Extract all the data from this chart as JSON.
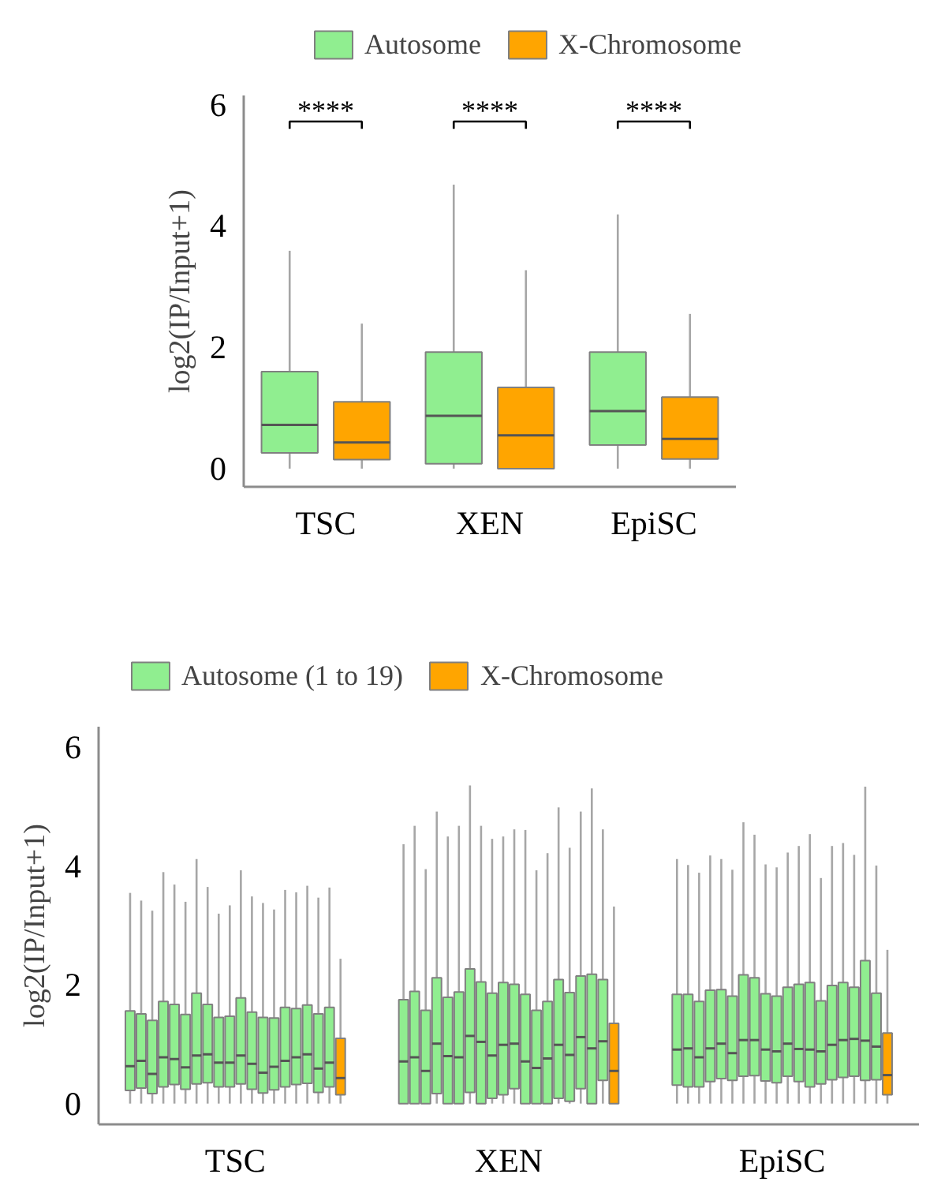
{
  "chart_data": [
    {
      "type": "box",
      "categories": [
        "TSC",
        "XEN",
        "EpiSC"
      ],
      "ylabel": "log2(IP/Input+1)",
      "ylim": [
        -0.3,
        6.15
      ],
      "yticks": [
        0,
        2,
        4,
        6
      ],
      "legend": "top",
      "annotations": [
        "****",
        "****",
        "****"
      ],
      "series": [
        {
          "name": "Autosome",
          "color": "#90ee90",
          "boxes": [
            {
              "low": 0,
              "q1": 0.26,
              "median": 0.72,
              "q3": 1.6,
              "high": 3.59
            },
            {
              "low": 0,
              "q1": 0.08,
              "median": 0.87,
              "q3": 1.92,
              "high": 4.68
            },
            {
              "low": 0,
              "q1": 0.39,
              "median": 0.95,
              "q3": 1.92,
              "high": 4.19
            }
          ]
        },
        {
          "name": "X-Chromosome",
          "color": "#ffa500",
          "boxes": [
            {
              "low": 0,
              "q1": 0.15,
              "median": 0.43,
              "q3": 1.1,
              "high": 2.39
            },
            {
              "low": 0,
              "q1": 0,
              "median": 0.55,
              "q3": 1.34,
              "high": 3.27
            },
            {
              "low": 0,
              "q1": 0.16,
              "median": 0.49,
              "q3": 1.18,
              "high": 2.55
            }
          ]
        }
      ]
    },
    {
      "type": "box",
      "categories": [
        "TSC",
        "XEN",
        "EpiSC"
      ],
      "ylabel": "log2(IP/Input+1)",
      "ylim": [
        -0.35,
        6.35
      ],
      "yticks": [
        0,
        2,
        4,
        6
      ],
      "legend": "top",
      "series": [
        {
          "name": "Autosome (1 to 19)",
          "color": "#90ee90",
          "boxes": [
            {
              "low": 0,
              "q1": 0.22,
              "median": 0.63,
              "q3": 1.56,
              "high": 3.55
            },
            {
              "low": 0,
              "q1": 0,
              "median": 0.71,
              "q3": 1.75,
              "high": 4.37
            },
            {
              "low": 0,
              "q1": 0.31,
              "median": 0.91,
              "q3": 1.84,
              "high": 4.12
            }
          ]
        },
        {
          "color": "#90ee90",
          "boxes": [
            {
              "low": 0,
              "q1": 0.26,
              "median": 0.72,
              "q3": 1.51,
              "high": 3.42
            },
            {
              "low": 0,
              "q1": 0,
              "median": 0.78,
              "q3": 1.89,
              "high": 4.68
            },
            {
              "low": 0,
              "q1": 0.28,
              "median": 0.93,
              "q3": 1.84,
              "high": 4.02
            }
          ]
        },
        {
          "color": "#90ee90",
          "boxes": [
            {
              "low": 0,
              "q1": 0.17,
              "median": 0.5,
              "q3": 1.4,
              "high": 3.25
            },
            {
              "low": 0,
              "q1": 0,
              "median": 0.55,
              "q3": 1.57,
              "high": 3.95
            },
            {
              "low": 0,
              "q1": 0.28,
              "median": 0.78,
              "q3": 1.72,
              "high": 3.89
            }
          ]
        },
        {
          "color": "#90ee90",
          "boxes": [
            {
              "low": 0,
              "q1": 0.28,
              "median": 0.78,
              "q3": 1.72,
              "high": 3.9
            },
            {
              "low": 0,
              "q1": 0.17,
              "median": 1.01,
              "q3": 2.12,
              "high": 4.92
            },
            {
              "low": 0,
              "q1": 0.37,
              "median": 0.93,
              "q3": 1.91,
              "high": 4.18
            }
          ]
        },
        {
          "color": "#90ee90",
          "boxes": [
            {
              "low": 0,
              "q1": 0.32,
              "median": 0.75,
              "q3": 1.67,
              "high": 3.69
            },
            {
              "low": 0,
              "q1": 0,
              "median": 0.8,
              "q3": 1.79,
              "high": 4.5
            },
            {
              "low": 0,
              "q1": 0.42,
              "median": 1.01,
              "q3": 1.92,
              "high": 4.12
            }
          ]
        },
        {
          "color": "#90ee90",
          "boxes": [
            {
              "low": 0,
              "q1": 0.24,
              "median": 0.61,
              "q3": 1.5,
              "high": 3.4
            },
            {
              "low": 0,
              "q1": 0,
              "median": 0.78,
              "q3": 1.88,
              "high": 4.68
            },
            {
              "low": 0,
              "q1": 0.39,
              "median": 0.85,
              "q3": 1.81,
              "high": 3.94
            }
          ]
        },
        {
          "color": "#90ee90",
          "boxes": [
            {
              "low": 0,
              "q1": 0.33,
              "median": 0.81,
              "q3": 1.86,
              "high": 4.12
            },
            {
              "low": 0,
              "q1": 0.19,
              "median": 1.14,
              "q3": 2.27,
              "high": 5.36
            },
            {
              "low": 0,
              "q1": 0.46,
              "median": 1.07,
              "q3": 2.17,
              "high": 4.74
            }
          ]
        },
        {
          "color": "#90ee90",
          "boxes": [
            {
              "low": 0,
              "q1": 0.35,
              "median": 0.83,
              "q3": 1.67,
              "high": 3.65
            },
            {
              "low": 0,
              "q1": 0,
              "median": 1.04,
              "q3": 2.05,
              "high": 4.68
            },
            {
              "low": 0,
              "q1": 0.47,
              "median": 1.07,
              "q3": 2.12,
              "high": 4.53
            }
          ]
        },
        {
          "color": "#90ee90",
          "boxes": [
            {
              "low": 0,
              "q1": 0.28,
              "median": 0.69,
              "q3": 1.45,
              "high": 3.2
            },
            {
              "low": 0,
              "q1": 0.09,
              "median": 0.81,
              "q3": 1.86,
              "high": 4.46
            },
            {
              "low": 0,
              "q1": 0.38,
              "median": 0.91,
              "q3": 1.85,
              "high": 4.03
            }
          ]
        },
        {
          "color": "#90ee90",
          "boxes": [
            {
              "low": 0,
              "q1": 0.28,
              "median": 0.69,
              "q3": 1.47,
              "high": 3.34
            },
            {
              "low": 0,
              "q1": 0.15,
              "median": 0.99,
              "q3": 2.04,
              "high": 4.5
            },
            {
              "low": 0,
              "q1": 0.35,
              "median": 0.88,
              "q3": 1.81,
              "high": 3.98
            }
          ]
        },
        {
          "color": "#90ee90",
          "boxes": [
            {
              "low": 0,
              "q1": 0.33,
              "median": 0.81,
              "q3": 1.78,
              "high": 3.93
            },
            {
              "low": 0,
              "q1": 0.25,
              "median": 1.01,
              "q3": 2.01,
              "high": 4.62
            },
            {
              "low": 0,
              "q1": 0.46,
              "median": 1.01,
              "q3": 1.96,
              "high": 4.23
            }
          ]
        },
        {
          "color": "#90ee90",
          "boxes": [
            {
              "low": 0,
              "q1": 0.24,
              "median": 0.67,
              "q3": 1.54,
              "high": 3.49
            },
            {
              "low": 0,
              "q1": 0,
              "median": 0.71,
              "q3": 1.84,
              "high": 4.61
            },
            {
              "low": 0,
              "q1": 0.37,
              "median": 0.92,
              "q3": 2.01,
              "high": 4.34
            }
          ]
        },
        {
          "color": "#90ee90",
          "boxes": [
            {
              "low": 0,
              "q1": 0.18,
              "median": 0.52,
              "q3": 1.45,
              "high": 3.38
            },
            {
              "low": 0,
              "q1": 0,
              "median": 0.6,
              "q3": 1.57,
              "high": 3.93
            },
            {
              "low": 0,
              "q1": 0.28,
              "median": 0.91,
              "q3": 2.04,
              "high": 4.54
            }
          ]
        },
        {
          "color": "#90ee90",
          "boxes": [
            {
              "low": 0,
              "q1": 0.23,
              "median": 0.62,
              "q3": 1.44,
              "high": 3.27
            },
            {
              "low": 0,
              "q1": 0,
              "median": 0.76,
              "q3": 1.72,
              "high": 4.22
            },
            {
              "low": 0,
              "q1": 0.33,
              "median": 0.88,
              "q3": 1.73,
              "high": 3.8
            }
          ]
        },
        {
          "color": "#90ee90",
          "boxes": [
            {
              "low": 0,
              "q1": 0.28,
              "median": 0.72,
              "q3": 1.62,
              "high": 3.6
            },
            {
              "low": 0,
              "q1": 0.09,
              "median": 0.99,
              "q3": 2.09,
              "high": 4.99
            },
            {
              "low": 0,
              "q1": 0.4,
              "median": 0.99,
              "q3": 1.99,
              "high": 4.34
            }
          ]
        },
        {
          "color": "#90ee90",
          "boxes": [
            {
              "low": 0,
              "q1": 0.32,
              "median": 0.78,
              "q3": 1.6,
              "high": 3.56
            },
            {
              "low": 0,
              "q1": 0.04,
              "median": 0.82,
              "q3": 1.87,
              "high": 4.31
            },
            {
              "low": 0,
              "q1": 0.44,
              "median": 1.07,
              "q3": 2.04,
              "high": 4.39
            }
          ]
        },
        {
          "color": "#90ee90",
          "boxes": [
            {
              "low": 0,
              "q1": 0.34,
              "median": 0.83,
              "q3": 1.66,
              "high": 3.67
            },
            {
              "low": 0,
              "q1": 0.25,
              "median": 1.12,
              "q3": 2.15,
              "high": 4.92
            },
            {
              "low": 0,
              "q1": 0.46,
              "median": 1.09,
              "q3": 1.96,
              "high": 4.19
            }
          ]
        },
        {
          "color": "#90ee90",
          "boxes": [
            {
              "low": 0,
              "q1": 0.19,
              "median": 0.59,
              "q3": 1.51,
              "high": 3.47
            },
            {
              "low": 0,
              "q1": 0,
              "median": 0.93,
              "q3": 2.18,
              "high": 5.31
            },
            {
              "low": 0,
              "q1": 0.39,
              "median": 1.06,
              "q3": 2.41,
              "high": 5.34
            }
          ]
        },
        {
          "color": "#90ee90",
          "boxes": [
            {
              "low": 0,
              "q1": 0.28,
              "median": 0.69,
              "q3": 1.62,
              "high": 3.64
            },
            {
              "low": 0,
              "q1": 0.39,
              "median": 1.05,
              "q3": 2.09,
              "high": 4.62
            },
            {
              "low": 0,
              "q1": 0.4,
              "median": 0.96,
              "q3": 1.86,
              "high": 4.01
            }
          ]
        },
        {
          "name": "X-Chromosome",
          "color": "#ffa500",
          "boxes": [
            {
              "low": 0,
              "q1": 0.15,
              "median": 0.43,
              "q3": 1.1,
              "high": 2.44
            },
            {
              "low": 0,
              "q1": 0,
              "median": 0.55,
              "q3": 1.35,
              "high": 3.32
            },
            {
              "low": 0,
              "q1": 0.15,
              "median": 0.48,
              "q3": 1.19,
              "high": 2.59
            }
          ]
        }
      ]
    }
  ]
}
